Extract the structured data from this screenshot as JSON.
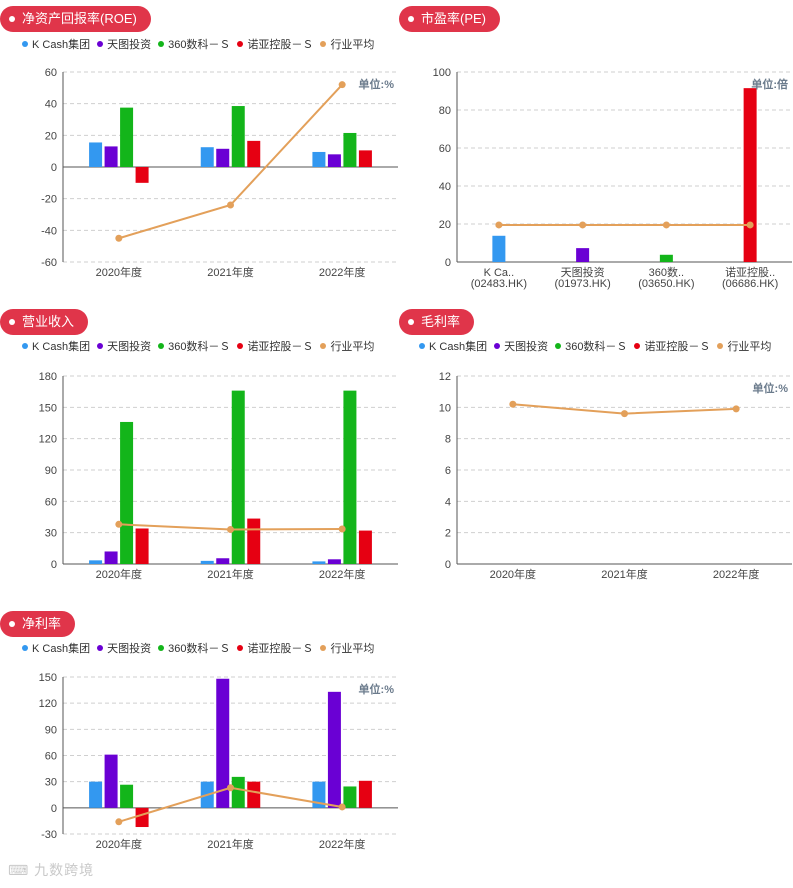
{
  "colors": {
    "series": [
      "#3398f0",
      "#6a00d4",
      "#13b51a",
      "#e60012"
    ],
    "average": "#e3a05a",
    "pill": "#e0354a"
  },
  "legend": [
    "K Cash集团",
    "天图投资",
    "360数科－Ｓ",
    "诺亚控股－Ｓ",
    "行业平均"
  ],
  "watermark": "⌨ 九数跨境",
  "chart_data": [
    {
      "id": "roe",
      "title": "净资产回报率(ROE)",
      "type": "bar",
      "unit": "单位:%",
      "categories": [
        "2020年度",
        "2021年度",
        "2022年度"
      ],
      "ylim": [
        -60,
        60
      ],
      "yticks": [
        -60,
        -40,
        -20,
        0,
        20,
        40,
        60
      ],
      "series": [
        {
          "name": "K Cash集团",
          "values": [
            15.5,
            12.5,
            9.5
          ]
        },
        {
          "name": "天图投资",
          "values": [
            13,
            11.5,
            8
          ]
        },
        {
          "name": "360数科－Ｓ",
          "values": [
            37.5,
            38.5,
            21.5
          ]
        },
        {
          "name": "诺亚控股－Ｓ",
          "values": [
            -10,
            16.5,
            10.5
          ]
        }
      ],
      "line": {
        "name": "行业平均",
        "values": [
          -45,
          -24,
          52
        ]
      }
    },
    {
      "id": "pe",
      "title": "市盈率(PE)",
      "type": "bar",
      "unit": "单位:倍",
      "categories": [
        "K Ca..\n(02483.HK)",
        "天图投资\n(01973.HK)",
        "360数..\n(03650.HK)",
        "诺亚控股..\n(06686.HK)"
      ],
      "ylim": [
        0,
        100
      ],
      "yticks": [
        0,
        20,
        40,
        60,
        80,
        100
      ],
      "bars": [
        13.8,
        7.3,
        3.8,
        91.5
      ],
      "line": {
        "name": "行业平均",
        "values": [
          19.5,
          19.5,
          19.5,
          19.5
        ]
      }
    },
    {
      "id": "revenue",
      "title": "营业收入",
      "type": "bar",
      "unit": "",
      "categories": [
        "2020年度",
        "2021年度",
        "2022年度"
      ],
      "ylim": [
        0,
        180
      ],
      "yticks": [
        0,
        30,
        60,
        90,
        120,
        150,
        180
      ],
      "series": [
        {
          "name": "K Cash集团",
          "values": [
            3.5,
            3,
            2.5
          ]
        },
        {
          "name": "天图投资",
          "values": [
            12,
            5.5,
            4.5
          ]
        },
        {
          "name": "360数科－Ｓ",
          "values": [
            136,
            166,
            166
          ]
        },
        {
          "name": "诺亚控股－Ｓ",
          "values": [
            34,
            43.5,
            32
          ]
        }
      ],
      "line": {
        "name": "行业平均",
        "values": [
          38,
          33,
          33.5
        ]
      }
    },
    {
      "id": "gross",
      "title": "毛利率",
      "type": "line",
      "unit": "单位:%",
      "categories": [
        "2020年度",
        "2021年度",
        "2022年度"
      ],
      "ylim": [
        0,
        12
      ],
      "yticks": [
        0,
        2,
        4,
        6,
        8,
        10,
        12
      ],
      "series": [],
      "line": {
        "name": "行业平均",
        "values": [
          10.2,
          9.6,
          9.9
        ]
      }
    },
    {
      "id": "net",
      "title": "净利率",
      "type": "bar",
      "unit": "单位:%",
      "categories": [
        "2020年度",
        "2021年度",
        "2022年度"
      ],
      "ylim": [
        -30,
        150
      ],
      "yticks": [
        -30,
        0,
        30,
        60,
        90,
        120,
        150
      ],
      "series": [
        {
          "name": "K Cash集团",
          "values": [
            30,
            30,
            30
          ]
        },
        {
          "name": "天图投资",
          "values": [
            61,
            148,
            133
          ]
        },
        {
          "name": "360数科－Ｓ",
          "values": [
            26.5,
            35.5,
            24.5
          ]
        },
        {
          "name": "诺亚控股－Ｓ",
          "values": [
            -22,
            30,
            31
          ]
        }
      ],
      "line": {
        "name": "行业平均",
        "values": [
          -16,
          23,
          1
        ]
      }
    }
  ]
}
